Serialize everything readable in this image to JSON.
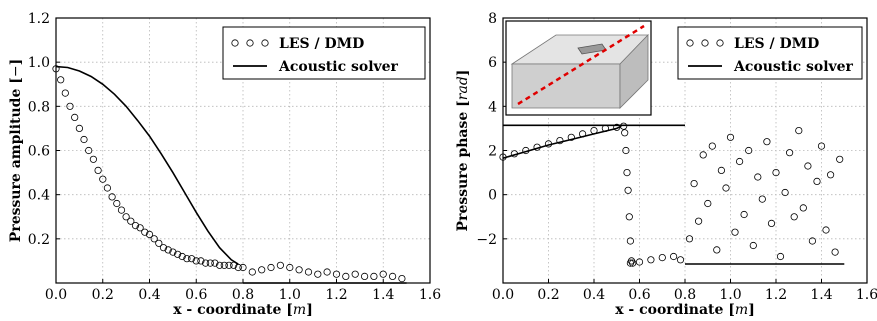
{
  "chart_data": [
    {
      "type": "line",
      "xlabel": "x - coordinate [m]",
      "ylabel": "Pressure amplitude [−]",
      "xlim": [
        0.0,
        1.6
      ],
      "ylim": [
        0.0,
        1.2
      ],
      "xticks": [
        "0.0",
        "0.2",
        "0.4",
        "0.6",
        "0.8",
        "1.0",
        "1.2",
        "1.4",
        "1.6"
      ],
      "yticks": [
        "0.2",
        "0.4",
        "0.6",
        "0.8",
        "1.0",
        "1.2"
      ],
      "grid": true,
      "legend_position": "top-right",
      "series": [
        {
          "name": "LES / DMD",
          "style": "open-circle-markers",
          "x": [
            0.0,
            0.02,
            0.04,
            0.06,
            0.08,
            0.1,
            0.12,
            0.14,
            0.16,
            0.18,
            0.2,
            0.22,
            0.24,
            0.26,
            0.28,
            0.3,
            0.32,
            0.34,
            0.36,
            0.38,
            0.4,
            0.42,
            0.44,
            0.46,
            0.48,
            0.5,
            0.52,
            0.54,
            0.56,
            0.58,
            0.6,
            0.62,
            0.64,
            0.66,
            0.68,
            0.7,
            0.72,
            0.74,
            0.76,
            0.78,
            0.8,
            0.84,
            0.88,
            0.92,
            0.96,
            1.0,
            1.04,
            1.08,
            1.12,
            1.16,
            1.2,
            1.24,
            1.28,
            1.32,
            1.36,
            1.4,
            1.44,
            1.48
          ],
          "y": [
            0.97,
            0.92,
            0.86,
            0.8,
            0.75,
            0.7,
            0.65,
            0.6,
            0.56,
            0.51,
            0.47,
            0.43,
            0.39,
            0.36,
            0.33,
            0.3,
            0.28,
            0.26,
            0.25,
            0.23,
            0.22,
            0.2,
            0.18,
            0.16,
            0.15,
            0.14,
            0.13,
            0.12,
            0.11,
            0.11,
            0.1,
            0.1,
            0.09,
            0.09,
            0.09,
            0.08,
            0.08,
            0.08,
            0.08,
            0.07,
            0.07,
            0.05,
            0.06,
            0.07,
            0.08,
            0.07,
            0.06,
            0.05,
            0.04,
            0.05,
            0.04,
            0.03,
            0.04,
            0.03,
            0.03,
            0.04,
            0.03,
            0.02
          ]
        },
        {
          "name": "Acoustic solver",
          "style": "solid-line",
          "x": [
            0.0,
            0.05,
            0.1,
            0.15,
            0.2,
            0.25,
            0.3,
            0.35,
            0.4,
            0.45,
            0.5,
            0.55,
            0.6,
            0.65,
            0.7,
            0.75,
            0.78
          ],
          "y": [
            0.98,
            0.976,
            0.96,
            0.935,
            0.9,
            0.855,
            0.8,
            0.735,
            0.665,
            0.585,
            0.5,
            0.41,
            0.32,
            0.235,
            0.16,
            0.105,
            0.085
          ]
        },
        {
          "name": "",
          "style": "solid-line",
          "x": [
            0.8,
            0.9,
            1.0,
            1.1,
            1.2,
            1.3,
            1.4,
            1.5
          ],
          "y": [
            0.0,
            0.0,
            0.0,
            0.0,
            0.0,
            0.0,
            0.0,
            0.0
          ]
        }
      ]
    },
    {
      "type": "scatter",
      "xlabel": "x - coordinate [m]",
      "ylabel": "Pressure phase [rad]",
      "xlim": [
        0.0,
        1.6
      ],
      "ylim": [
        -4.0,
        8.0
      ],
      "xticks": [
        "0.0",
        "0.2",
        "0.4",
        "0.6",
        "0.8",
        "1.0",
        "1.2",
        "1.4",
        "1.6"
      ],
      "yticks": [
        "−2",
        "0",
        "2",
        "4",
        "6",
        "8"
      ],
      "grid": true,
      "legend_position": "top-right",
      "inset": "3d-duct-geometry",
      "series": [
        {
          "name": "LES / DMD",
          "style": "open-circle-markers",
          "x": [
            0.0,
            0.05,
            0.1,
            0.15,
            0.2,
            0.25,
            0.3,
            0.35,
            0.4,
            0.45,
            0.5,
            0.53,
            0.535,
            0.54,
            0.545,
            0.55,
            0.555,
            0.56,
            0.565,
            0.56,
            0.57,
            0.6,
            0.65,
            0.7,
            0.75,
            0.78,
            0.82,
            0.84,
            0.86,
            0.88,
            0.9,
            0.92,
            0.94,
            0.96,
            0.98,
            1.0,
            1.02,
            1.04,
            1.06,
            1.08,
            1.1,
            1.12,
            1.14,
            1.16,
            1.18,
            1.2,
            1.22,
            1.24,
            1.26,
            1.28,
            1.3,
            1.32,
            1.34,
            1.36,
            1.38,
            1.4,
            1.42,
            1.44,
            1.46,
            1.48
          ],
          "y": [
            1.7,
            1.85,
            2.0,
            2.15,
            2.3,
            2.45,
            2.6,
            2.75,
            2.9,
            3.0,
            3.05,
            3.1,
            2.8,
            2.0,
            1.0,
            0.2,
            -1.0,
            -2.1,
            -3.0,
            -3.1,
            -3.1,
            -3.05,
            -2.95,
            -2.85,
            -2.8,
            -2.95,
            -2.0,
            0.5,
            -1.2,
            1.8,
            -0.4,
            2.2,
            -2.5,
            1.1,
            0.3,
            2.6,
            -1.7,
            1.5,
            -0.9,
            2.0,
            -2.3,
            0.8,
            -0.2,
            2.4,
            -1.3,
            1.0,
            -2.8,
            0.1,
            1.9,
            -1.0,
            2.9,
            -0.6,
            1.3,
            -2.1,
            0.6,
            2.2,
            -1.6,
            0.9,
            -2.6,
            1.6
          ]
        },
        {
          "name": "Acoustic solver",
          "style": "solid-line",
          "x": [
            0.0,
            0.1,
            0.2,
            0.3,
            0.4,
            0.5,
            0.52
          ],
          "y": [
            1.65,
            1.95,
            2.25,
            2.5,
            2.75,
            3.0,
            3.1
          ]
        },
        {
          "name": "",
          "style": "solid-line",
          "x": [
            0.0,
            0.8
          ],
          "y": [
            3.14,
            3.14
          ]
        },
        {
          "name": "",
          "style": "solid-line",
          "x": [
            0.8,
            1.5
          ],
          "y": [
            -3.14,
            -3.14
          ]
        }
      ]
    }
  ]
}
